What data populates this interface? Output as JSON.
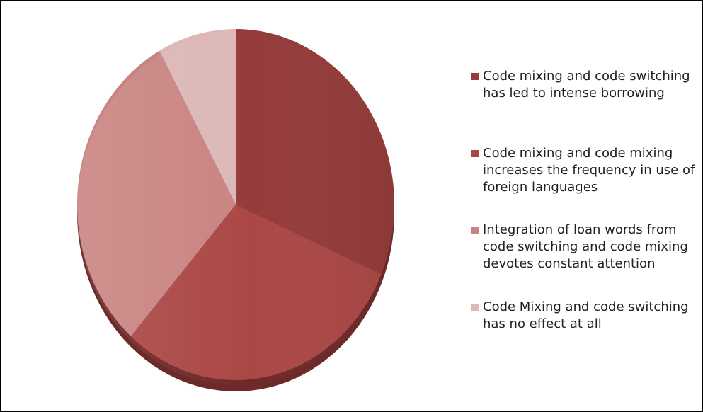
{
  "chart_data": {
    "type": "pie",
    "title": "",
    "categories": [
      "Code mixing and code switching has led to intense borrowing",
      "Code mixing and code mixing increases the frequency in use of foreign languages",
      "Integration of loan words from code switching and code mixing devotes constant attention",
      "Code Mixing and code switching has no effect at all"
    ],
    "legend_lines": [
      [
        "Code mixing and code switching",
        "has led to intense borrowing"
      ],
      [
        "Code mixing and code mixing",
        "increases the frequency in use of",
        "foreign languages"
      ],
      [
        "Integration of loan words from",
        "code switching and code mixing",
        "devotes constant attention"
      ],
      [
        "Code Mixing and code switching",
        "has no effect at all"
      ]
    ],
    "values": [
      31.5,
      30,
      30.5,
      8
    ],
    "colors": [
      "#943c3b",
      "#ab4846",
      "#c98482",
      "#dcb8b7"
    ],
    "legend_position": "right"
  }
}
